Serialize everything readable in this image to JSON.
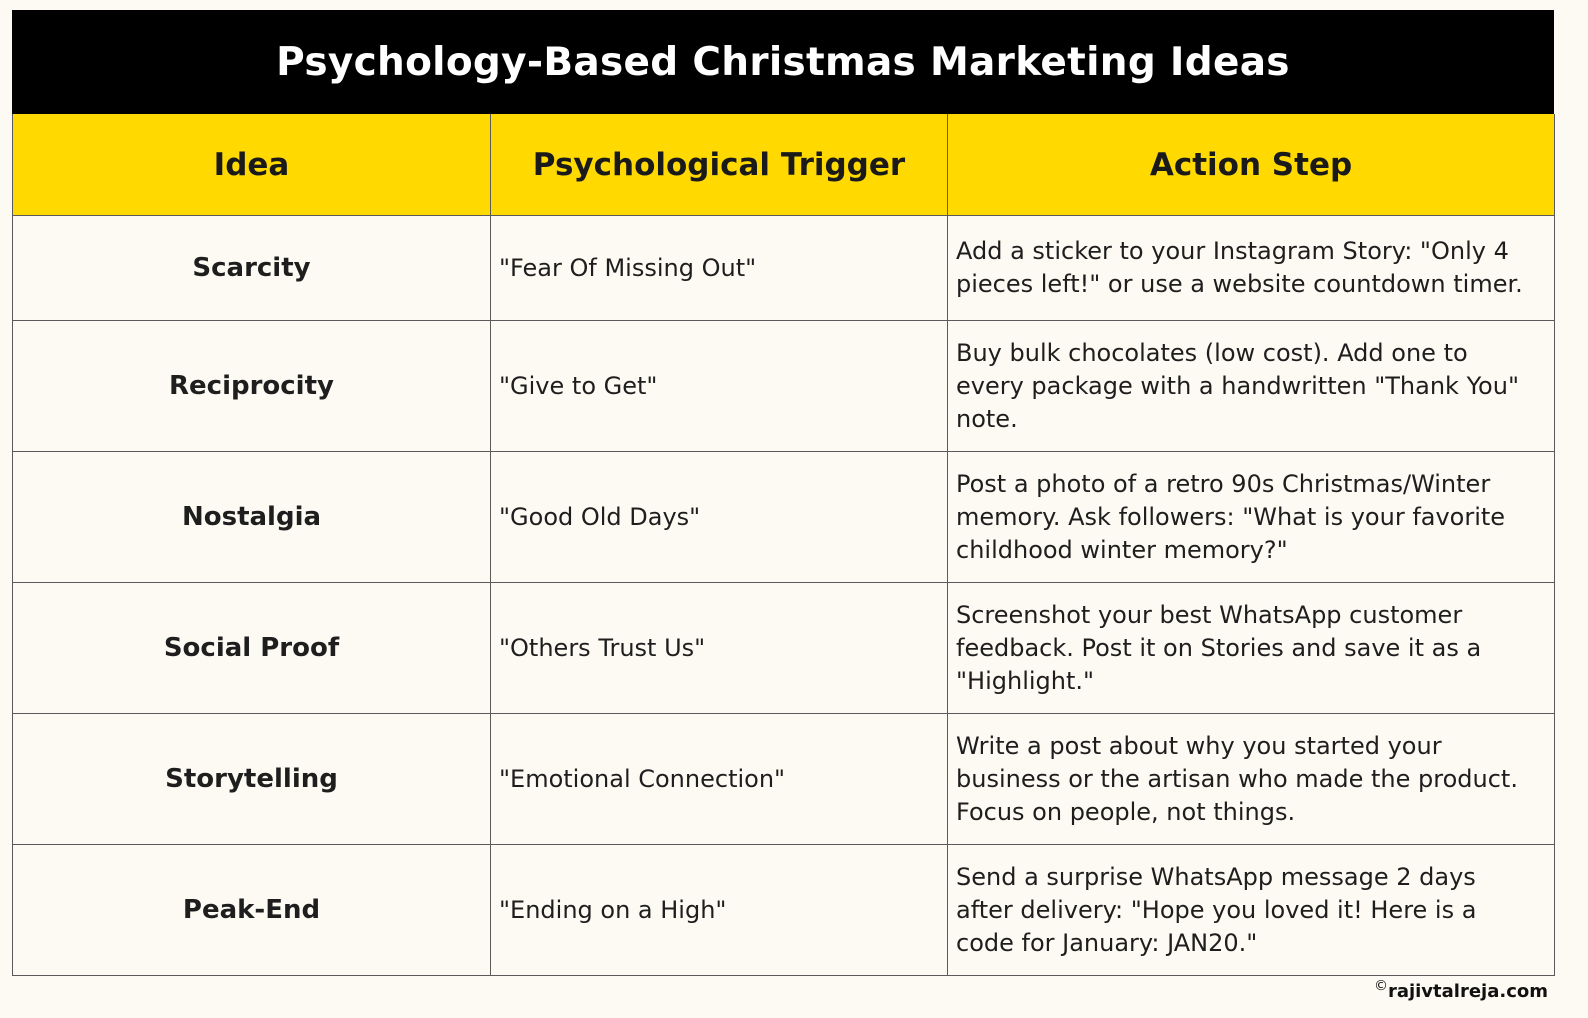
{
  "title": "Psychology-Based Christmas Marketing Ideas",
  "columns": [
    "Idea",
    "Psychological Trigger",
    "Action Step"
  ],
  "rows": [
    {
      "idea": "Scarcity",
      "trigger": "\"Fear Of Missing Out\"",
      "action": "Add a sticker to your Instagram Story: \"Only 4 pieces left!\" or use a website countdown timer."
    },
    {
      "idea": "Reciprocity",
      "trigger": "\"Give to Get\"",
      "action": "Buy bulk chocolates (low cost). Add one to every package with a handwritten \"Thank You\" note."
    },
    {
      "idea": "Nostalgia",
      "trigger": "\"Good Old Days\"",
      "action": "Post a photo of a retro 90s Christmas/Winter memory. Ask followers: \"What is your favorite childhood winter memory?\""
    },
    {
      "idea": "Social Proof",
      "trigger": "\"Others Trust Us\"",
      "action": "Screenshot your best WhatsApp customer feedback. Post it on Stories and save it as a \"Highlight.\""
    },
    {
      "idea": "Storytelling",
      "trigger": "\"Emotional Connection\"",
      "action": "Write a post about why you started your business or the artisan who made the product. Focus on people, not things."
    },
    {
      "idea": "Peak-End",
      "trigger": "\"Ending on a High\"",
      "action": "Send a surprise WhatsApp message 2 days after delivery: \"Hope you loved it! Here is a code for January: JAN20.\""
    }
  ],
  "watermark": {
    "symbol": "©",
    "text": "rajivtalreja.com"
  },
  "colors": {
    "title_background": "#000000",
    "header_background": "#ffd900",
    "body_background": "#fdfaf3"
  }
}
